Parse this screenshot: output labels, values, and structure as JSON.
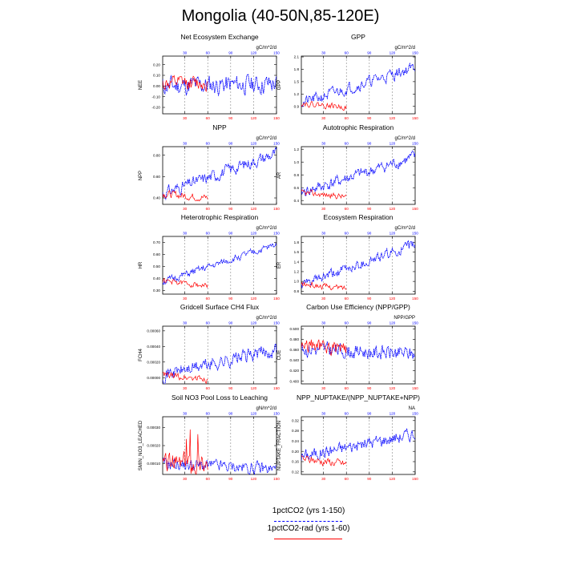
{
  "title": "Mongolia (40-50N,85-120E)",
  "x_ticks": [
    "30",
    "60",
    "90",
    "120",
    "150"
  ],
  "legend": [
    {
      "label": "1pctCO2 (yrs 1-150)",
      "color": "#0000ff",
      "style": "dashed"
    },
    {
      "label": "1pctCO2-rad (yrs 1-60)",
      "color": "#ff0000",
      "style": "solid"
    }
  ],
  "chart_data": [
    {
      "type": "line",
      "title": "Net Ecosystem Exchange",
      "units": "gC/m^2/d",
      "ylabel": "NEE",
      "yticks": [
        "0.20",
        "0.10",
        "0.00",
        "-0.10",
        "-0.20"
      ],
      "ytick_values": [
        0.2,
        0.1,
        0.0,
        -0.1,
        -0.2
      ],
      "ylim": [
        -0.26,
        0.28
      ],
      "xlim": [
        1,
        150
      ],
      "series": [
        {
          "name": "1pctCO2 (yrs 1-150)",
          "years": [
            1,
            150
          ],
          "start": 0.0,
          "end": 0.02,
          "noise": 0.08,
          "seed": 11
        },
        {
          "name": "1pctCO2-rad (yrs 1-60)",
          "years": [
            1,
            60
          ],
          "start": 0.02,
          "end": 0.03,
          "noise": 0.06,
          "seed": 12
        }
      ]
    },
    {
      "type": "line",
      "title": "GPP",
      "units": "gC/m^2/d",
      "ylabel": "GPP",
      "yticks": [
        "2.1",
        "1.8",
        "1.5",
        "1.2",
        "0.9"
      ],
      "ytick_values": [
        2.1,
        1.8,
        1.5,
        1.2,
        0.9
      ],
      "ylim": [
        0.72,
        2.12
      ],
      "xlim": [
        1,
        150
      ],
      "series": [
        {
          "name": "1pctCO2 (yrs 1-150)",
          "years": [
            1,
            150
          ],
          "start": 0.98,
          "end": 1.85,
          "noise": 0.12,
          "seed": 21
        },
        {
          "name": "1pctCO2-rad (yrs 1-60)",
          "years": [
            1,
            60
          ],
          "start": 0.98,
          "end": 0.88,
          "noise": 0.06,
          "seed": 22
        }
      ]
    },
    {
      "type": "line",
      "title": "NPP",
      "units": "gC/m^2/d",
      "ylabel": "NPP",
      "yticks": [
        "0.80",
        "0.60",
        "0.40"
      ],
      "ytick_values": [
        0.8,
        0.6,
        0.4
      ],
      "ylim": [
        0.34,
        0.88
      ],
      "xlim": [
        1,
        150
      ],
      "series": [
        {
          "name": "1pctCO2 (yrs 1-150)",
          "years": [
            1,
            150
          ],
          "start": 0.44,
          "end": 0.82,
          "noise": 0.05,
          "seed": 31
        },
        {
          "name": "1pctCO2-rad (yrs 1-60)",
          "years": [
            1,
            60
          ],
          "start": 0.44,
          "end": 0.4,
          "noise": 0.03,
          "seed": 32
        }
      ]
    },
    {
      "type": "line",
      "title": "Autotrophic Respiration",
      "units": "gC/m^2/d",
      "ylabel": "AR",
      "yticks": [
        "1.2",
        "1.0",
        "0.8",
        "0.6",
        "0.4"
      ],
      "ytick_values": [
        1.2,
        1.0,
        0.8,
        0.6,
        0.4
      ],
      "ylim": [
        0.34,
        1.24
      ],
      "xlim": [
        1,
        150
      ],
      "series": [
        {
          "name": "1pctCO2 (yrs 1-150)",
          "years": [
            1,
            150
          ],
          "start": 0.52,
          "end": 1.08,
          "noise": 0.08,
          "seed": 41
        },
        {
          "name": "1pctCO2-rad (yrs 1-60)",
          "years": [
            1,
            60
          ],
          "start": 0.52,
          "end": 0.46,
          "noise": 0.04,
          "seed": 42
        }
      ]
    },
    {
      "type": "line",
      "title": "Heterotrophic Respiration",
      "units": "gC/m^2/d",
      "ylabel": "HR",
      "yticks": [
        "0.70",
        "0.60",
        "0.50",
        "0.40",
        "0.30"
      ],
      "ytick_values": [
        0.7,
        0.6,
        0.5,
        0.4,
        0.3
      ],
      "ylim": [
        0.27,
        0.75
      ],
      "xlim": [
        1,
        150
      ],
      "series": [
        {
          "name": "1pctCO2 (yrs 1-150)",
          "years": [
            1,
            150
          ],
          "start": 0.37,
          "end": 0.68,
          "noise": 0.025,
          "seed": 51
        },
        {
          "name": "1pctCO2-rad (yrs 1-60)",
          "years": [
            1,
            60
          ],
          "start": 0.38,
          "end": 0.34,
          "noise": 0.02,
          "seed": 52
        }
      ]
    },
    {
      "type": "line",
      "title": "Ecosystem Respiration",
      "units": "gC/m^2/d",
      "ylabel": "ER",
      "yticks": [
        "1.8",
        "1.6",
        "1.4",
        "1.2",
        "1.0",
        "0.8"
      ],
      "ytick_values": [
        1.8,
        1.6,
        1.4,
        1.2,
        1.0,
        0.8
      ],
      "ylim": [
        0.74,
        1.92
      ],
      "xlim": [
        1,
        150
      ],
      "series": [
        {
          "name": "1pctCO2 (yrs 1-150)",
          "years": [
            1,
            150
          ],
          "start": 0.92,
          "end": 1.75,
          "noise": 0.09,
          "seed": 61
        },
        {
          "name": "1pctCO2-rad (yrs 1-60)",
          "years": [
            1,
            60
          ],
          "start": 0.94,
          "end": 0.86,
          "noise": 0.05,
          "seed": 62
        }
      ]
    },
    {
      "type": "line",
      "title": "Gridcell Surface CH4 Flux",
      "units": "gC/m^2/d",
      "ylabel": "FCH4",
      "yticks": [
        "0.00060",
        "0.00040",
        "0.00020",
        "0.00000"
      ],
      "ytick_values": [
        0.0006,
        0.0004,
        0.0002,
        0.0
      ],
      "ylim": [
        -8e-05,
        0.00066
      ],
      "xlim": [
        1,
        150
      ],
      "series": [
        {
          "name": "1pctCO2 (yrs 1-150)",
          "years": [
            1,
            150
          ],
          "start": 4e-05,
          "end": 0.00036,
          "noise": 8e-05,
          "seed": 71
        },
        {
          "name": "1pctCO2-rad (yrs 1-60)",
          "years": [
            1,
            60
          ],
          "start": 3e-05,
          "end": -2e-05,
          "noise": 4e-05,
          "seed": 72
        }
      ]
    },
    {
      "type": "line",
      "title": "Carbon Use Efficiency (NPP/GPP)",
      "units": "NPP/GPP",
      "ylabel": "CUE",
      "yticks": [
        "0.500",
        "0.480",
        "0.460",
        "0.440",
        "0.420",
        "0.400"
      ],
      "ytick_values": [
        0.5,
        0.48,
        0.46,
        0.44,
        0.42,
        0.4
      ],
      "ylim": [
        0.395,
        0.505
      ],
      "xlim": [
        1,
        150
      ],
      "series": [
        {
          "name": "1pctCO2 (yrs 1-150)",
          "years": [
            1,
            150
          ],
          "start": 0.462,
          "end": 0.452,
          "noise": 0.012,
          "seed": 81
        },
        {
          "name": "1pctCO2-rad (yrs 1-60)",
          "years": [
            1,
            60
          ],
          "start": 0.47,
          "end": 0.46,
          "noise": 0.012,
          "seed": 82
        }
      ]
    },
    {
      "type": "line",
      "title": "Soil NO3 Pool Loss to Leaching",
      "units": "gN/m^2/d",
      "ylabel": "SMIN_NO3_LEACHED",
      "yticks": [
        "0.00030",
        "0.00020",
        "0.00010"
      ],
      "ytick_values": [
        0.0003,
        0.0002,
        0.0001
      ],
      "ylim": [
        4e-05,
        0.00036
      ],
      "xlim": [
        1,
        150
      ],
      "series": [
        {
          "name": "1pctCO2 (yrs 1-150)",
          "years": [
            1,
            150
          ],
          "start": 0.0001,
          "end": 7e-05,
          "noise": 3e-05,
          "seed": 91
        },
        {
          "name": "1pctCO2-rad (yrs 1-60)",
          "years": [
            1,
            60
          ],
          "start": 0.0001,
          "end": 0.0001,
          "noise": 5e-05,
          "seed": 92,
          "spikes": true
        }
      ]
    },
    {
      "type": "line",
      "title": "NPP_NUPTAKE/(NPP_NUPTAKE+NPP)",
      "units": "NA",
      "ylabel": "NUPTAKE_FRACTION",
      "yticks": [
        "0.32",
        "0.28",
        "0.24",
        "0.20",
        "0.16",
        "0.12"
      ],
      "ytick_values": [
        0.32,
        0.28,
        0.24,
        0.2,
        0.16,
        0.12
      ],
      "ylim": [
        0.11,
        0.335
      ],
      "xlim": [
        1,
        150
      ],
      "series": [
        {
          "name": "1pctCO2 (yrs 1-150)",
          "years": [
            1,
            150
          ],
          "start": 0.18,
          "end": 0.27,
          "noise": 0.022,
          "seed": 101
        },
        {
          "name": "1pctCO2-rad (yrs 1-60)",
          "years": [
            1,
            60
          ],
          "start": 0.17,
          "end": 0.15,
          "noise": 0.014,
          "seed": 102
        }
      ]
    }
  ]
}
